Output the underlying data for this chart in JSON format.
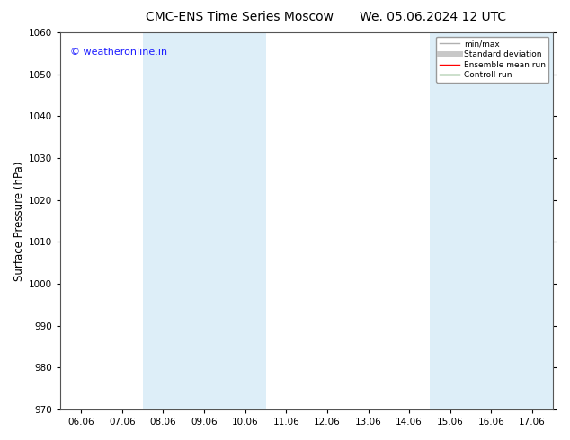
{
  "title_left": "CMC-ENS Time Series Moscow",
  "title_right": "We. 05.06.2024 12 UTC",
  "ylabel": "Surface Pressure (hPa)",
  "ylim": [
    970,
    1060
  ],
  "yticks": [
    970,
    980,
    990,
    1000,
    1010,
    1020,
    1030,
    1040,
    1050,
    1060
  ],
  "xlabels": [
    "06.06",
    "07.06",
    "08.06",
    "09.06",
    "10.06",
    "11.06",
    "12.06",
    "13.06",
    "14.06",
    "15.06",
    "16.06",
    "17.06"
  ],
  "shaded_bands": [
    {
      "xstart": 2,
      "xend": 4
    },
    {
      "xstart": 9,
      "xend": 11
    }
  ],
  "shade_color": "#ddeef8",
  "watermark": "© weatheronline.in",
  "watermark_color": "#1a1aff",
  "bg_color": "#ffffff",
  "legend_items": [
    {
      "label": "min/max",
      "color": "#b0b0b0",
      "lw": 1.0,
      "style": "-"
    },
    {
      "label": "Standard deviation",
      "color": "#c8c8c8",
      "lw": 5,
      "style": "-"
    },
    {
      "label": "Ensemble mean run",
      "color": "#ff0000",
      "lw": 1.0,
      "style": "-"
    },
    {
      "label": "Controll run",
      "color": "#006400",
      "lw": 1.0,
      "style": "-"
    }
  ],
  "title_fontsize": 10,
  "tick_fontsize": 7.5,
  "ylabel_fontsize": 8.5,
  "watermark_fontsize": 8
}
